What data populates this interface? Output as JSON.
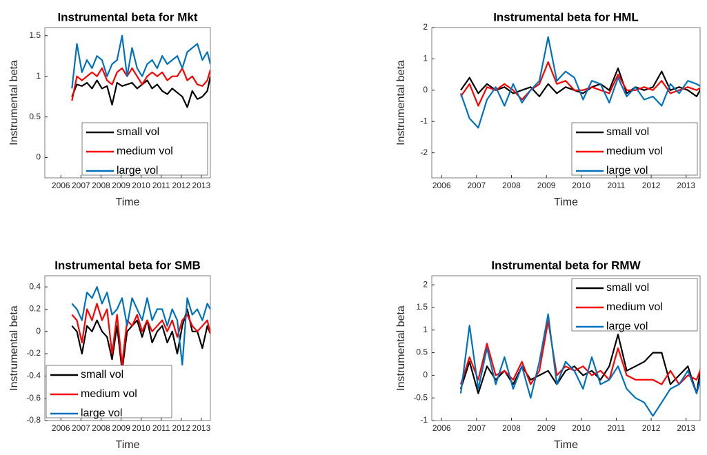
{
  "chart_data": [
    {
      "type": "line",
      "title": "Instrumental beta for Mkt",
      "x_label": "Time",
      "y_label": "Instrumental beta",
      "x": [
        2006.55,
        2006.8,
        2007.05,
        2007.3,
        2007.55,
        2007.8,
        2008.05,
        2008.3,
        2008.55,
        2008.8,
        2009.05,
        2009.3,
        2009.55,
        2009.8,
        2010.05,
        2010.3,
        2010.55,
        2010.8,
        2011.05,
        2011.3,
        2011.55,
        2011.8,
        2012.05,
        2012.3,
        2012.55,
        2012.8,
        2013.05,
        2013.3,
        2013.45
      ],
      "xlim": [
        2005.2,
        2013.45
      ],
      "xticks": [
        2006,
        2007,
        2008,
        2009,
        2010,
        2011,
        2012,
        2013
      ],
      "ylim": [
        -0.25,
        1.6
      ],
      "yticks": [
        0,
        0.5,
        1,
        1.5
      ],
      "legend": "southeast",
      "series": [
        {
          "name": "small vol",
          "color": "#000000",
          "values": [
            0.75,
            0.9,
            0.88,
            0.92,
            0.85,
            0.95,
            0.85,
            0.88,
            0.65,
            0.92,
            0.88,
            0.9,
            0.92,
            0.85,
            0.9,
            0.95,
            0.85,
            0.9,
            0.82,
            0.78,
            0.85,
            0.8,
            0.75,
            0.62,
            0.82,
            0.72,
            0.75,
            0.82,
            1.0
          ]
        },
        {
          "name": "medium vol",
          "color": "#ff0000",
          "values": [
            0.7,
            1.0,
            0.95,
            1.0,
            1.05,
            1.0,
            1.1,
            0.95,
            0.9,
            1.05,
            1.1,
            1.0,
            1.1,
            1.0,
            0.9,
            1.0,
            1.05,
            1.0,
            1.05,
            0.95,
            1.0,
            1.0,
            1.1,
            0.95,
            1.0,
            0.9,
            0.88,
            0.95,
            1.08
          ]
        },
        {
          "name": "large vol",
          "color": "#0072bd",
          "values": [
            0.85,
            1.4,
            1.05,
            1.2,
            1.1,
            1.25,
            1.2,
            1.0,
            1.15,
            1.2,
            1.5,
            1.0,
            1.35,
            1.1,
            1.0,
            1.15,
            1.2,
            1.1,
            1.25,
            1.15,
            1.2,
            1.25,
            1.1,
            1.3,
            1.35,
            1.4,
            1.2,
            1.3,
            1.15
          ]
        }
      ]
    },
    {
      "type": "line",
      "title": "Instrumental beta for HML",
      "x_label": "Time",
      "y_label": "Instrumental beta",
      "x": [
        2006.55,
        2006.8,
        2007.05,
        2007.3,
        2007.55,
        2007.8,
        2008.05,
        2008.3,
        2008.55,
        2008.8,
        2009.05,
        2009.3,
        2009.55,
        2009.8,
        2010.05,
        2010.3,
        2010.55,
        2010.8,
        2011.05,
        2011.3,
        2011.55,
        2011.8,
        2012.05,
        2012.3,
        2012.55,
        2012.8,
        2013.05,
        2013.3,
        2013.45
      ],
      "xlim": [
        2005.72,
        2013.4
      ],
      "xticks": [
        2006,
        2007,
        2008,
        2009,
        2010,
        2011,
        2012,
        2013
      ],
      "ylim": [
        -2.8,
        2
      ],
      "yticks": [
        -2,
        -1,
        0,
        1,
        2
      ],
      "legend": "southeast",
      "series": [
        {
          "name": "small vol",
          "color": "#000000",
          "values": [
            0,
            0.4,
            -0.1,
            0.2,
            0,
            0.1,
            -0.1,
            0,
            0.1,
            -0.2,
            0.2,
            -0.1,
            0.1,
            0,
            -0.1,
            0.1,
            0.2,
            0,
            0.7,
            -0.1,
            0.1,
            0,
            0.1,
            0.6,
            0,
            0.1,
            0,
            -0.2,
            0.1
          ]
        },
        {
          "name": "medium vol",
          "color": "#ff0000",
          "values": [
            -0.2,
            0.2,
            -0.5,
            0.1,
            0,
            0.2,
            0,
            -0.3,
            0,
            0.2,
            0.9,
            0.2,
            0.3,
            0,
            0,
            0.1,
            0,
            -0.1,
            0.5,
            0,
            0,
            0.1,
            0,
            0.3,
            -0.1,
            0,
            0.1,
            0,
            0.1
          ]
        },
        {
          "name": "large vol",
          "color": "#0072bd",
          "values": [
            -0.1,
            -0.9,
            -1.2,
            -0.3,
            0.1,
            -0.5,
            0.2,
            -0.4,
            0,
            0.3,
            1.7,
            0.3,
            0.6,
            0.4,
            -0.3,
            0.3,
            0.2,
            -0.4,
            0.4,
            -0.2,
            0.1,
            -0.3,
            -0.2,
            -0.5,
            0.2,
            -0.1,
            0.3,
            0.2,
            0.1
          ]
        }
      ]
    },
    {
      "type": "line",
      "title": "Instrumental beta for SMB",
      "x_label": "Time",
      "y_label": "Instrumental beta",
      "x": [
        2006.55,
        2006.8,
        2007.05,
        2007.3,
        2007.55,
        2007.8,
        2008.05,
        2008.3,
        2008.55,
        2008.8,
        2009.05,
        2009.3,
        2009.55,
        2009.8,
        2010.05,
        2010.3,
        2010.55,
        2010.8,
        2011.05,
        2011.3,
        2011.55,
        2011.8,
        2012.05,
        2012.3,
        2012.55,
        2012.8,
        2013.05,
        2013.3,
        2013.45
      ],
      "xlim": [
        2005.2,
        2013.45
      ],
      "xticks": [
        2006,
        2007,
        2008,
        2009,
        2010,
        2011,
        2012,
        2013
      ],
      "ylim": [
        -0.8,
        0.5
      ],
      "yticks": [
        -0.8,
        -0.6,
        -0.4,
        -0.2,
        0,
        0.2,
        0.4
      ],
      "legend": "southwest",
      "series": [
        {
          "name": "small vol",
          "color": "#000000",
          "values": [
            0.05,
            0,
            -0.2,
            0.05,
            0,
            0.1,
            0,
            -0.05,
            -0.25,
            0.05,
            -0.35,
            0,
            0.05,
            0.1,
            -0.05,
            0.1,
            -0.1,
            0,
            0.05,
            -0.1,
            0,
            -0.2,
            0.05,
            0.2,
            0,
            0,
            -0.15,
            0.05,
            -0.02
          ]
        },
        {
          "name": "medium vol",
          "color": "#ff0000",
          "values": [
            0.15,
            0.1,
            -0.1,
            0.2,
            0.1,
            0.25,
            0.1,
            0.2,
            -0.2,
            0.15,
            -0.3,
            0.1,
            0.05,
            0.15,
            0,
            0.1,
            0,
            0.05,
            0.1,
            0,
            0.1,
            -0.05,
            0.1,
            0.15,
            0.05,
            0,
            0.05,
            0.1,
            -0.02
          ]
        },
        {
          "name": "large vol",
          "color": "#0072bd",
          "values": [
            0.25,
            0.2,
            0.1,
            0.35,
            0.3,
            0.4,
            0.25,
            0.35,
            0.15,
            0.2,
            0.3,
            0.05,
            0.3,
            0.2,
            0.1,
            0.3,
            0.1,
            0.2,
            0.2,
            0.05,
            0.2,
            0.1,
            -0.3,
            0.3,
            0.15,
            0.2,
            0.1,
            0.25,
            0.2
          ]
        }
      ]
    },
    {
      "type": "line",
      "title": "Instrumental beta for RMW",
      "x_label": "Time",
      "y_label": "Instrumental beta",
      "x": [
        2006.55,
        2006.8,
        2007.05,
        2007.3,
        2007.55,
        2007.8,
        2008.05,
        2008.3,
        2008.55,
        2008.8,
        2009.05,
        2009.3,
        2009.55,
        2009.8,
        2010.05,
        2010.3,
        2010.55,
        2010.8,
        2011.05,
        2011.3,
        2011.55,
        2011.8,
        2012.05,
        2012.3,
        2012.55,
        2012.8,
        2013.05,
        2013.3,
        2013.45
      ],
      "xlim": [
        2005.72,
        2013.4
      ],
      "xticks": [
        2006,
        2007,
        2008,
        2009,
        2010,
        2011,
        2012,
        2013
      ],
      "ylim": [
        -1,
        2.2
      ],
      "yticks": [
        -1,
        -0.5,
        0,
        0.5,
        1,
        1.5,
        2
      ],
      "legend": "northeast",
      "series": [
        {
          "name": "small vol",
          "color": "#000000",
          "values": [
            -0.3,
            0.3,
            -0.4,
            0.2,
            -0.1,
            0.1,
            -0.2,
            0.2,
            -0.1,
            0,
            0.1,
            -0.2,
            0.1,
            0.2,
            0,
            0.1,
            -0.1,
            0.2,
            0.9,
            0.1,
            0.2,
            0.3,
            0.5,
            0.5,
            -0.2,
            0,
            0.2,
            -0.4,
            0.3
          ]
        },
        {
          "name": "medium vol",
          "color": "#ff0000",
          "values": [
            -0.2,
            0.4,
            -0.1,
            0.7,
            0,
            0.1,
            -0.1,
            0.3,
            -0.2,
            0.1,
            1.2,
            0,
            0.2,
            0.1,
            0.2,
            0,
            0.1,
            -0.1,
            0.6,
            0,
            -0.1,
            -0.1,
            -0.1,
            -0.2,
            0.1,
            -0.2,
            0,
            -0.1,
            0.2
          ]
        },
        {
          "name": "large vol",
          "color": "#0072bd",
          "values": [
            -0.4,
            1.1,
            -0.3,
            0.6,
            -0.2,
            0.4,
            -0.3,
            0.2,
            -0.5,
            0.3,
            1.35,
            -0.2,
            0.3,
            0.1,
            -0.3,
            0.4,
            -0.2,
            -0.1,
            0.2,
            -0.3,
            -0.5,
            -0.6,
            -0.9,
            -0.6,
            -0.3,
            -0.2,
            0.1,
            -0.4,
            0
          ]
        }
      ]
    }
  ]
}
